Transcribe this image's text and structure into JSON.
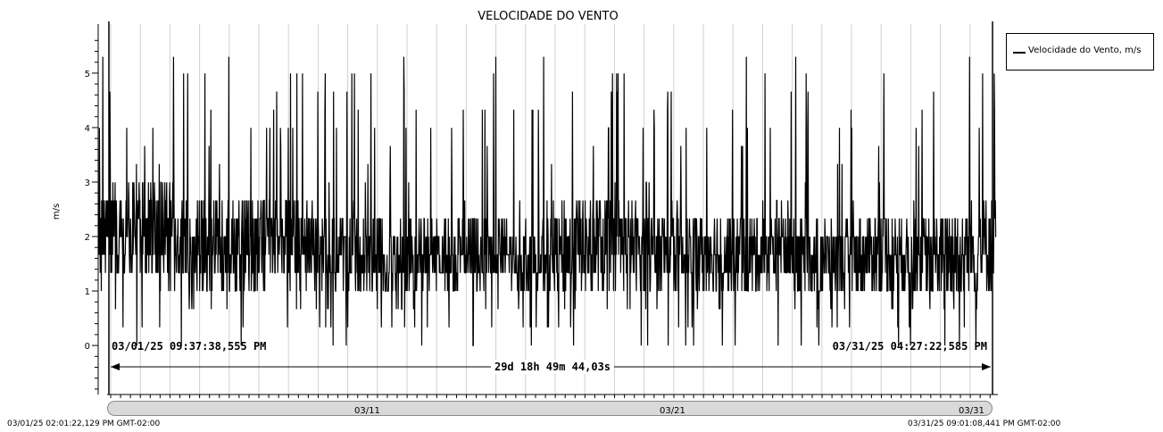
{
  "chart_data": {
    "type": "line",
    "title": "VELOCIDADE DO VENTO",
    "ylabel": "m/s",
    "xlabel": "",
    "ylim": [
      -0.9,
      5.9
    ],
    "yticks": [
      "0",
      "1",
      "2",
      "3",
      "4",
      "5"
    ],
    "x_start": "03/01/25 09:37:38,555 PM",
    "x_end": "03/31/25 04:27:22,585 PM",
    "duration_label": "29d 18h 49m 44,03s",
    "grid": "vertical",
    "legend_position": "right",
    "series": [
      {
        "name": "Velocidade do Vento, m/s",
        "color": "#000000",
        "approx_band_low": [
          1.0,
          1.2,
          1.1,
          1.0,
          0.9,
          1.0,
          1.2,
          1.1,
          1.0,
          0.8,
          0.9,
          1.1,
          1.0,
          1.2,
          1.0,
          0.9,
          1.0,
          1.1,
          0.9,
          1.0,
          1.0,
          0.9,
          1.1,
          1.0,
          0.9,
          1.0,
          1.0,
          0.8,
          0.9,
          1.0
        ],
        "approx_band_high": [
          2.8,
          3.0,
          3.2,
          2.7,
          2.6,
          2.8,
          2.7,
          2.6,
          2.3,
          2.4,
          2.3,
          2.2,
          2.4,
          2.3,
          2.0,
          2.6,
          2.8,
          2.7,
          2.4,
          2.6,
          2.5,
          2.4,
          2.6,
          2.3,
          2.2,
          2.5,
          2.3,
          2.4,
          2.6,
          2.7
        ],
        "max": 5.3,
        "min": 0.0
      }
    ]
  },
  "legend": {
    "label": "Velocidade do Vento, m/s"
  },
  "cursor": {
    "left_label": "03/01/25 09:37:38,555 PM",
    "right_label": "03/31/25 04:27:22,585 PM",
    "delta_label": "29d 18h 49m 44,03s"
  },
  "scrollbar": {
    "ticks": [
      "03/11",
      "03/21",
      "03/31"
    ]
  },
  "footer": {
    "start": "03/01/25 02:01:22,129 PM GMT-02:00",
    "end": "03/31/25 09:01:08,441 PM GMT-02:00"
  }
}
